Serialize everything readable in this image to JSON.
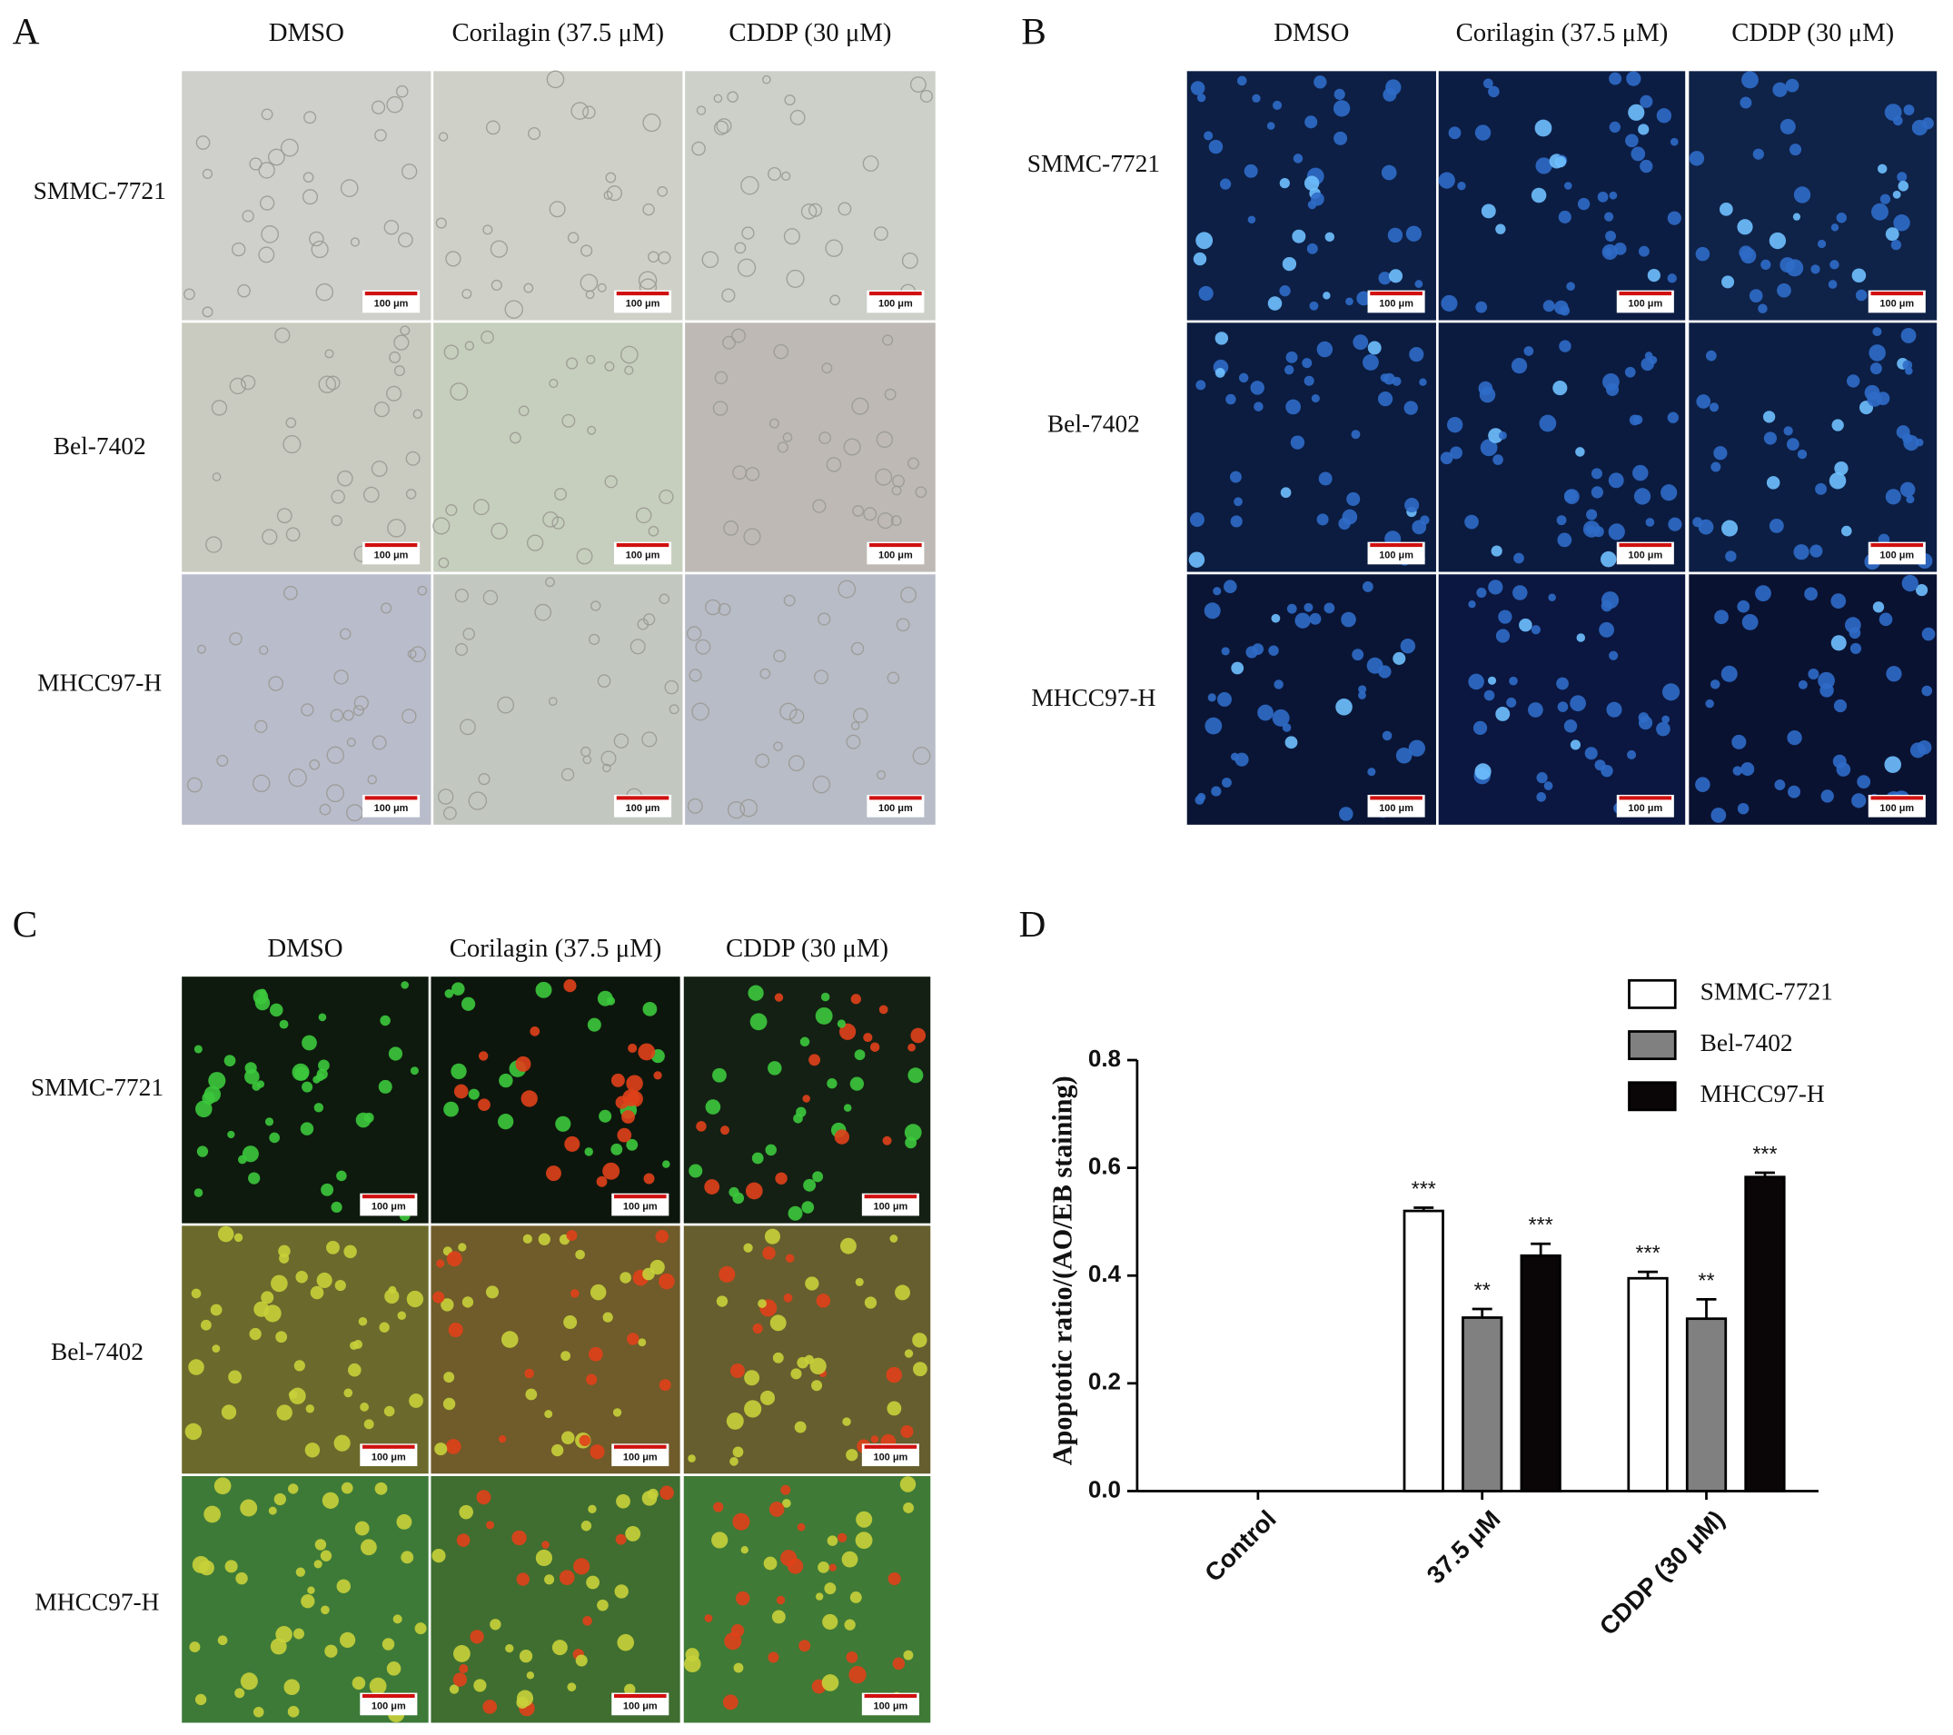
{
  "panels": [
    {
      "label": "A",
      "columns": [
        "DMSO",
        "Corilagin (37.5 μM)",
        "CDDP (30 μM)"
      ],
      "rows": [
        "SMMC-7721",
        "Bel-7402",
        "MHCC97-H"
      ],
      "scale_bar": "100 μm"
    },
    {
      "label": "B",
      "columns": [
        "DMSO",
        "Corilagin (37.5 μM)",
        "CDDP (30 μM)"
      ],
      "rows": [
        "SMMC-7721",
        "Bel-7402",
        "MHCC97-H"
      ],
      "scale_bar": "100 μm"
    },
    {
      "label": "C",
      "columns": [
        "DMSO",
        "Corilagin (37.5 μM)",
        "CDDP (30 μM)"
      ],
      "rows": [
        "SMMC-7721",
        "Bel-7402",
        "MHCC97-H"
      ],
      "scale_bar": "100 μm"
    }
  ],
  "chart_data": {
    "type": "bar",
    "panel_label": "D",
    "y_label": "Apoptotic ratio/(AO/EB staining)",
    "categories": [
      "Control",
      "37.5 μM",
      "CDDP (30 μM)"
    ],
    "series": [
      {
        "name": "SMMC-7721",
        "color": "#ffffff",
        "values": [
          0,
          0.52,
          0.395
        ],
        "errors": [
          0,
          0.006,
          0.012
        ],
        "annotations": [
          null,
          "***",
          "***"
        ]
      },
      {
        "name": "Bel-7402",
        "color": "#808080",
        "values": [
          0,
          0.322,
          0.32
        ],
        "errors": [
          0,
          0.016,
          0.036
        ],
        "annotations": [
          null,
          "**",
          "**"
        ]
      },
      {
        "name": "MHCC97-H",
        "color": "#0a0608",
        "values": [
          0,
          0.437,
          0.583
        ],
        "errors": [
          0,
          0.022,
          0.008
        ],
        "annotations": [
          null,
          "***",
          "***"
        ]
      }
    ],
    "ylim": [
      0,
      0.8
    ],
    "yticks": [
      {
        "value": 0,
        "label": "0.0"
      },
      0.2,
      0.4,
      0.6,
      0.8
    ]
  }
}
